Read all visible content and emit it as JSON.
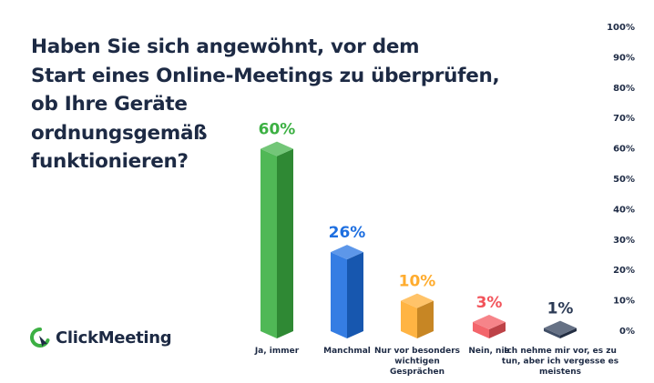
{
  "title": "Haben Sie sich angewöhnt, vor dem\nStart eines Online-Meetings zu überprüfen,\nob Ihre Geräte\nordnungsgemäß\nfunktionieren?",
  "brand": {
    "name": "ClickMeeting",
    "logo_icon": "clickmeeting-logo-icon"
  },
  "chart_data": {
    "type": "bar",
    "title": "Haben Sie sich angewöhnt, vor dem Start eines Online-Meetings zu überprüfen, ob Ihre Geräte ordnungsgemäß funktionieren?",
    "categories": [
      "Ja, immer",
      "Manchmal",
      "Nur vor besonders wichtigen Gesprächen",
      "Nein, nie",
      "Ich nehme mir vor, es zu tun, aber ich vergesse es meistens"
    ],
    "category_lines": [
      [
        "Ja, immer"
      ],
      [
        "Manchmal"
      ],
      [
        "Nur vor besonders",
        "wichtigen",
        "Gesprächen"
      ],
      [
        "Nein, nie"
      ],
      [
        "Ich nehme mir vor, es zu",
        "tun, aber ich vergesse es",
        "meistens"
      ]
    ],
    "values": [
      60,
      26,
      10,
      3,
      1
    ],
    "value_labels": [
      "60%",
      "26%",
      "10%",
      "3%",
      "1%"
    ],
    "colors": [
      "#3cb043",
      "#1e6fe0",
      "#ffac2e",
      "#f2545b",
      "#2b3a55"
    ],
    "y_ticks": [
      "0%",
      "10%",
      "20%",
      "30%",
      "40%",
      "50%",
      "60%",
      "70%",
      "80%",
      "90%",
      "100%"
    ],
    "ylim": [
      0,
      100
    ],
    "y_axis_position": "right",
    "grid": false,
    "legend": "none"
  }
}
